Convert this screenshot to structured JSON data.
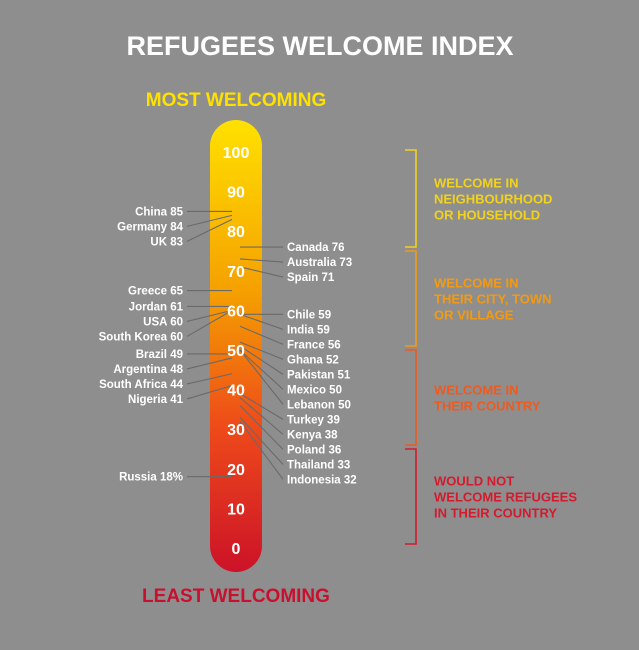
{
  "title": "REFUGEES WELCOME INDEX",
  "top_label": "MOST WELCOMING",
  "bottom_label": "LEAST WELCOMING",
  "colors": {
    "background": "#8e8e8e",
    "title": "#ffffff",
    "top_label": "#ffe100",
    "bottom_label": "#c8102e",
    "gradient_top": "#ffe100",
    "gradient_mid": "#f5a000",
    "gradient_low": "#ee4a1a",
    "gradient_bottom": "#cc1228"
  },
  "chart_data": {
    "type": "bar",
    "orientation": "vertical-thermometer",
    "ylim": [
      0,
      100
    ],
    "ticks": [
      100,
      90,
      80,
      70,
      60,
      50,
      40,
      30,
      20,
      10,
      0
    ],
    "left_points": [
      {
        "country": "China",
        "value": 85,
        "label": "85"
      },
      {
        "country": "Germany",
        "value": 84,
        "label": "84"
      },
      {
        "country": "UK",
        "value": 83,
        "label": "83"
      },
      {
        "country": "Greece",
        "value": 65,
        "label": "65"
      },
      {
        "country": "Jordan",
        "value": 61,
        "label": "61"
      },
      {
        "country": "USA",
        "value": 60,
        "label": "60"
      },
      {
        "country": "South Korea",
        "value": 60,
        "label": "60"
      },
      {
        "country": "Brazil",
        "value": 49,
        "label": "49"
      },
      {
        "country": "Argentina",
        "value": 48,
        "label": "48"
      },
      {
        "country": "South Africa",
        "value": 44,
        "label": "44"
      },
      {
        "country": "Nigeria",
        "value": 41,
        "label": "41"
      },
      {
        "country": "Russia",
        "value": 18,
        "label": "18%"
      }
    ],
    "right_points": [
      {
        "country": "Canada",
        "value": 76,
        "label": "76"
      },
      {
        "country": "Australia",
        "value": 73,
        "label": "73"
      },
      {
        "country": "Spain",
        "value": 71,
        "label": "71"
      },
      {
        "country": "Chile",
        "value": 59,
        "label": "59"
      },
      {
        "country": "India",
        "value": 59,
        "label": "59"
      },
      {
        "country": "France",
        "value": 56,
        "label": "56"
      },
      {
        "country": "Ghana",
        "value": 52,
        "label": "52"
      },
      {
        "country": "Pakistan",
        "value": 51,
        "label": "51"
      },
      {
        "country": "Mexico",
        "value": 50,
        "label": "50"
      },
      {
        "country": "Lebanon",
        "value": 50,
        "label": "50"
      },
      {
        "country": "Turkey",
        "value": 39,
        "label": "39"
      },
      {
        "country": "Kenya",
        "value": 38,
        "label": "38"
      },
      {
        "country": "Poland",
        "value": 36,
        "label": "36"
      },
      {
        "country": "Thailand",
        "value": 33,
        "label": "33"
      },
      {
        "country": "Indonesia",
        "value": 32,
        "label": "32"
      }
    ],
    "bands": [
      {
        "lines": [
          "WELCOME IN",
          "NEIGHBOURHOOD",
          "OR HOUSEHOLD"
        ],
        "color": "#f2d21c"
      },
      {
        "lines": [
          "WELCOME IN",
          "THEIR CITY, TOWN",
          "OR VILLAGE"
        ],
        "color": "#f39a12"
      },
      {
        "lines": [
          "WELCOME IN",
          "THEIR COUNTRY"
        ],
        "color": "#ef5a1e"
      },
      {
        "lines": [
          "WOULD NOT",
          "WELCOME REFUGEES",
          "IN THEIR COUNTRY"
        ],
        "color": "#d41a2c"
      }
    ]
  }
}
